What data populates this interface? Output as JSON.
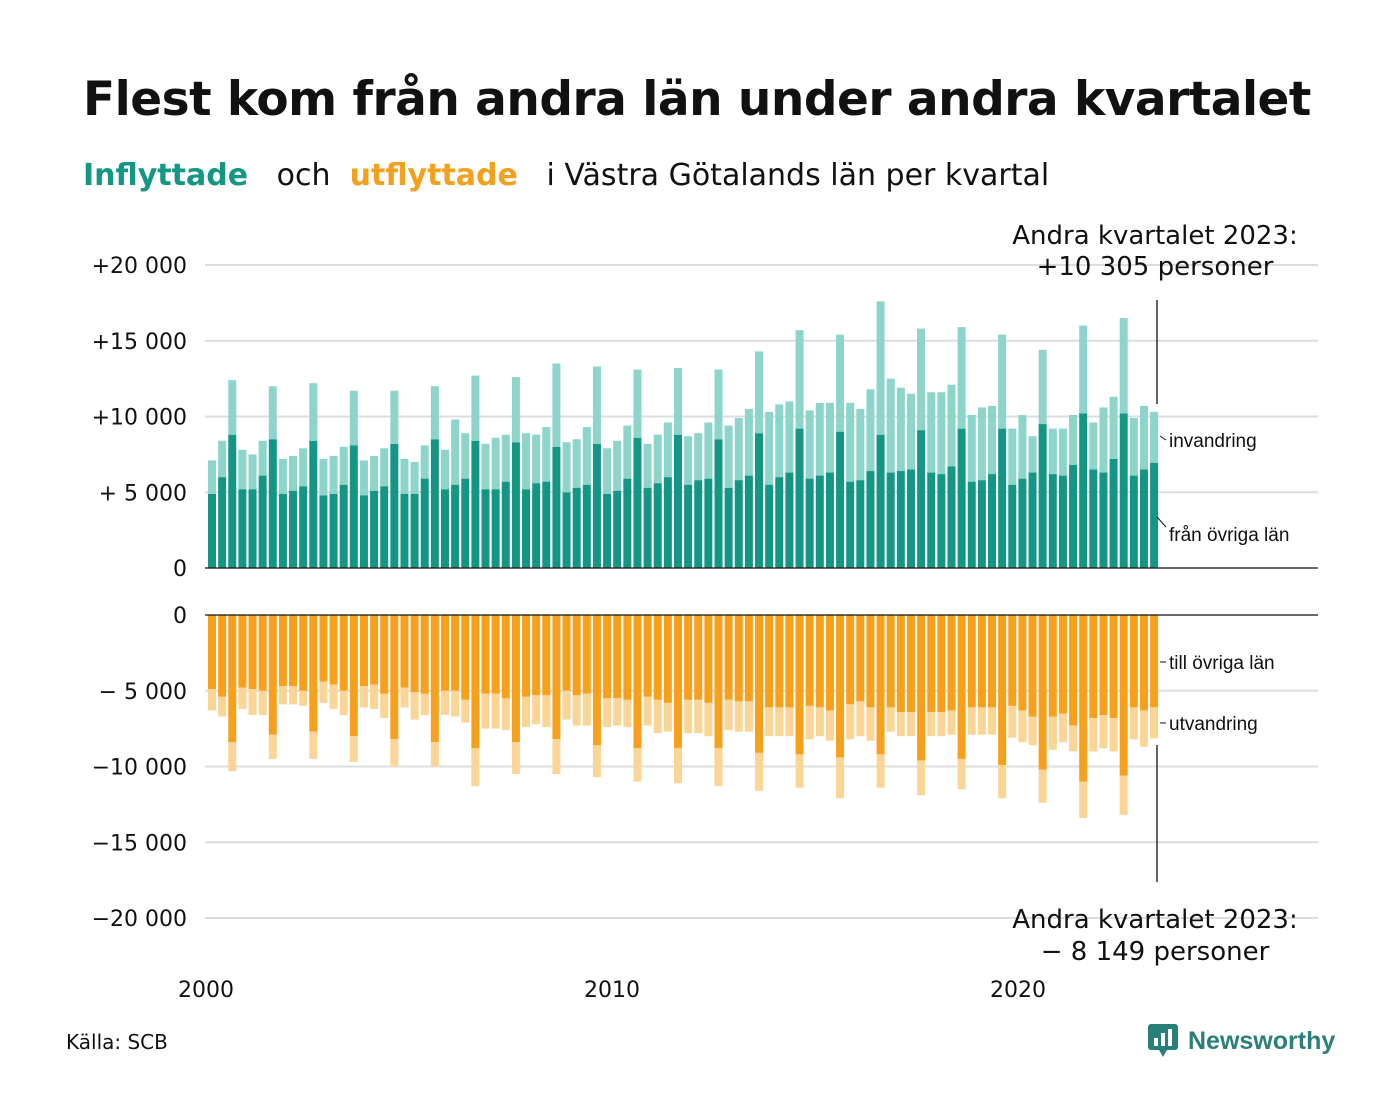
{
  "title": "Flest kom från andra län under andra kvartalet",
  "subtitle": {
    "in_word": "Inflyttade",
    "and_word": "och",
    "out_word": "utflyttade",
    "rest": "i Västra Götalands län per kvartal"
  },
  "colors": {
    "in_dark": "#149684",
    "in_light": "#8dd4ca",
    "out_dark": "#f6a01c",
    "out_light": "#fbd596",
    "grid": "#dddddd"
  },
  "annotations": {
    "top_line1": "Andra kvartalet 2023:",
    "top_line2": "+10 305 personer",
    "bottom_line1": "Andra kvartalet 2023:",
    "bottom_line2": "− 8 149 personer"
  },
  "segment_labels": {
    "in_total": "invandring",
    "in_domestic": "från övriga län",
    "out_domestic": "till övriga län",
    "out_total": "utvandring"
  },
  "source": "Källa: SCB",
  "logo_text": "Newsworthy",
  "chart_data": {
    "type": "bar",
    "x_tick_labels": [
      "2000",
      "2010",
      "2020"
    ],
    "top_axis": {
      "ylim": [
        0,
        20000
      ],
      "tick_values": [
        0,
        5000,
        10000,
        15000,
        20000
      ],
      "tick_labels": [
        "0",
        "+ 5 000",
        "+10 000",
        "+15 000",
        "+20 000"
      ]
    },
    "bottom_axis": {
      "ylim": [
        -20000,
        0
      ],
      "tick_values": [
        0,
        -5000,
        -10000,
        -15000,
        -20000
      ],
      "tick_labels": [
        "0",
        "− 5 000",
        "−10 000",
        "−15 000",
        "−20 000"
      ]
    },
    "quarters": [
      "2000 K1",
      "2000 K2",
      "2000 K3",
      "2000 K4",
      "2001 K1",
      "2001 K2",
      "2001 K3",
      "2001 K4",
      "2002 K1",
      "2002 K2",
      "2002 K3",
      "2002 K4",
      "2003 K1",
      "2003 K2",
      "2003 K3",
      "2003 K4",
      "2004 K1",
      "2004 K2",
      "2004 K3",
      "2004 K4",
      "2005 K1",
      "2005 K2",
      "2005 K3",
      "2005 K4",
      "2006 K1",
      "2006 K2",
      "2006 K3",
      "2006 K4",
      "2007 K1",
      "2007 K2",
      "2007 K3",
      "2007 K4",
      "2008 K1",
      "2008 K2",
      "2008 K3",
      "2008 K4",
      "2009 K1",
      "2009 K2",
      "2009 K3",
      "2009 K4",
      "2010 K1",
      "2010 K2",
      "2010 K3",
      "2010 K4",
      "2011 K1",
      "2011 K2",
      "2011 K3",
      "2011 K4",
      "2012 K1",
      "2012 K2",
      "2012 K3",
      "2012 K4",
      "2013 K1",
      "2013 K2",
      "2013 K3",
      "2013 K4",
      "2014 K1",
      "2014 K2",
      "2014 K3",
      "2014 K4",
      "2015 K1",
      "2015 K2",
      "2015 K3",
      "2015 K4",
      "2016 K1",
      "2016 K2",
      "2016 K3",
      "2016 K4",
      "2017 K1",
      "2017 K2",
      "2017 K3",
      "2017 K4",
      "2018 K1",
      "2018 K2",
      "2018 K3",
      "2018 K4",
      "2019 K1",
      "2019 K2",
      "2019 K3",
      "2019 K4",
      "2020 K1",
      "2020 K2",
      "2020 K3",
      "2020 K4",
      "2021 K1",
      "2021 K2",
      "2021 K3",
      "2021 K4",
      "2022 K1",
      "2022 K2",
      "2022 K3",
      "2022 K4",
      "2023 K1",
      "2023 K2"
    ],
    "series": [
      {
        "name": "från övriga län",
        "values": [
          4900,
          6000,
          8800,
          5200,
          5200,
          6100,
          8500,
          4900,
          5100,
          5400,
          8400,
          4800,
          4900,
          5500,
          8100,
          4800,
          5100,
          5400,
          8200,
          4900,
          4900,
          5900,
          8500,
          5200,
          5500,
          5900,
          8400,
          5200,
          5200,
          5700,
          8300,
          5200,
          5600,
          5700,
          8000,
          5000,
          5300,
          5500,
          8200,
          4900,
          5100,
          5900,
          8600,
          5300,
          5600,
          6000,
          8800,
          5500,
          5800,
          5900,
          8500,
          5300,
          5800,
          6100,
          8900,
          5500,
          6000,
          6300,
          9200,
          5900,
          6100,
          6300,
          9000,
          5700,
          5800,
          6400,
          8800,
          6300,
          6400,
          6500,
          9100,
          6300,
          6200,
          6700,
          9200,
          5700,
          5800,
          6200,
          9200,
          5500,
          5900,
          6300,
          9500,
          6200,
          6100,
          6800,
          10200,
          6500,
          6300,
          7200,
          10200,
          6100,
          6500,
          6950
        ]
      },
      {
        "name": "invandring",
        "values": [
          2200,
          2400,
          3600,
          2600,
          2300,
          2300,
          3500,
          2300,
          2300,
          2500,
          3800,
          2400,
          2500,
          2500,
          3600,
          2300,
          2300,
          2500,
          3500,
          2300,
          2100,
          2200,
          3500,
          2600,
          4300,
          3000,
          4300,
          3000,
          3400,
          3100,
          4300,
          3700,
          3200,
          3600,
          5500,
          3300,
          3200,
          3800,
          5100,
          3000,
          3300,
          3500,
          4500,
          2900,
          3200,
          3600,
          4400,
          3200,
          3100,
          3700,
          4600,
          4100,
          4100,
          4400,
          5400,
          4800,
          4800,
          4700,
          6500,
          4500,
          4800,
          4600,
          6400,
          5200,
          4700,
          5400,
          8800,
          6200,
          5500,
          5000,
          6700,
          5300,
          5400,
          5400,
          6700,
          4400,
          4800,
          4500,
          6200,
          3700,
          4200,
          2400,
          4900,
          3000,
          3100,
          3300,
          5800,
          3100,
          4300,
          4100,
          6300,
          3800,
          4200,
          3355
        ]
      },
      {
        "name": "till övriga län",
        "values": [
          -4900,
          -5400,
          -8400,
          -4800,
          -4900,
          -5000,
          -7900,
          -4700,
          -4700,
          -5000,
          -7700,
          -4400,
          -4600,
          -5000,
          -8000,
          -4700,
          -4600,
          -5200,
          -8200,
          -4800,
          -5100,
          -5200,
          -8400,
          -5000,
          -5000,
          -5600,
          -8800,
          -5200,
          -5200,
          -5500,
          -8400,
          -5400,
          -5300,
          -5300,
          -8200,
          -5000,
          -5300,
          -5200,
          -8600,
          -5500,
          -5500,
          -5600,
          -8800,
          -5400,
          -5600,
          -5800,
          -8800,
          -5600,
          -5600,
          -5800,
          -8800,
          -5600,
          -5700,
          -5700,
          -9100,
          -6100,
          -6100,
          -6100,
          -9200,
          -6000,
          -6100,
          -6300,
          -9400,
          -5900,
          -5700,
          -6100,
          -9200,
          -6100,
          -6400,
          -6400,
          -9600,
          -6400,
          -6400,
          -6300,
          -9500,
          -6100,
          -6100,
          -6100,
          -9900,
          -6000,
          -6300,
          -6700,
          -10200,
          -6700,
          -6500,
          -7300,
          -11000,
          -6800,
          -6600,
          -6800,
          -10600,
          -6100,
          -6300,
          -6100
        ]
      },
      {
        "name": "utvandring",
        "values": [
          -1400,
          -1300,
          -1900,
          -1400,
          -1700,
          -1600,
          -1600,
          -1200,
          -1200,
          -1000,
          -1800,
          -1400,
          -1600,
          -1600,
          -1700,
          -1400,
          -1600,
          -1600,
          -1800,
          -1300,
          -1800,
          -1400,
          -1600,
          -1600,
          -1700,
          -1500,
          -2500,
          -2300,
          -2300,
          -2100,
          -2100,
          -2000,
          -1900,
          -2100,
          -2300,
          -1900,
          -2000,
          -2100,
          -2100,
          -1900,
          -1800,
          -1800,
          -2200,
          -1900,
          -2200,
          -1900,
          -2300,
          -2200,
          -2200,
          -2200,
          -2500,
          -2000,
          -2000,
          -2000,
          -2500,
          -1900,
          -1900,
          -1900,
          -2200,
          -2200,
          -1900,
          -2000,
          -2700,
          -2300,
          -2300,
          -2200,
          -2200,
          -1600,
          -1600,
          -1600,
          -2300,
          -1600,
          -1600,
          -1600,
          -2000,
          -1800,
          -1800,
          -1800,
          -2200,
          -2100,
          -2100,
          -1900,
          -2200,
          -2200,
          -1900,
          -1700,
          -2400,
          -2200,
          -2200,
          -2200,
          -2600,
          -2100,
          -2400,
          -2049
        ]
      }
    ]
  }
}
